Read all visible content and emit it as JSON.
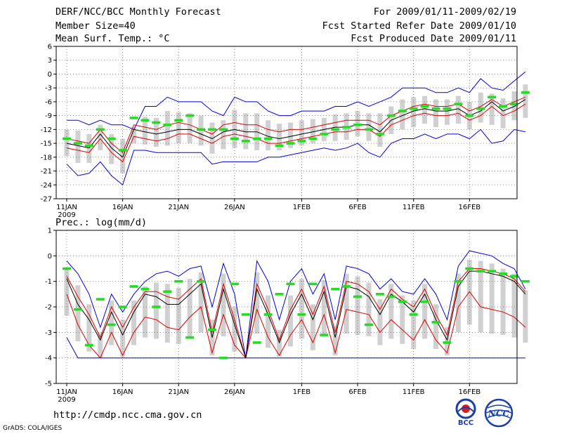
{
  "header": {
    "title": "DERF/NCC/BCC Monthly Forecast",
    "member_size": "Member Size=40",
    "variable1": "Mean Surf. Temp.: °C",
    "period": "For 2009/01/11-2009/02/19",
    "started": "Fcst Started Refer Date 2009/01/10",
    "produced": "Fcst Produced Date 2009/01/11"
  },
  "footer": {
    "url": "http://cmdp.ncc.cma.gov.cn",
    "credit": "GrADS: COLA/IGES",
    "logo_bcc": "BCC",
    "logo_ncc": "NCC"
  },
  "colors": {
    "blue": "#0000dd",
    "red": "#dd0000",
    "black": "#000000",
    "green": "#22dd22",
    "box": "#d0d0d0"
  },
  "chart_data": [
    {
      "type": "line",
      "title": "Mean Surf. Temp.: °C",
      "year_label": "2009",
      "x_tick_labels": [
        "11JAN",
        "16JAN",
        "21JAN",
        "26JAN",
        "1FEB",
        "6FEB",
        "11FEB",
        "16FEB"
      ],
      "x_tick_days": [
        0,
        5,
        10,
        15,
        21,
        26,
        31,
        36
      ],
      "ylim": [
        -27,
        6
      ],
      "y_ticks": [
        6,
        3,
        0,
        -3,
        -6,
        -9,
        -12,
        -15,
        -18,
        -21,
        -24,
        -27
      ],
      "series": [
        {
          "name": "upper envelope",
          "color": "blue",
          "values": [
            -10,
            -10,
            -11,
            -10,
            -11,
            -11,
            -12,
            -7,
            -7,
            -5,
            -6,
            -6,
            -6,
            -8,
            -9,
            -5,
            -6,
            -6,
            -8,
            -9,
            -9,
            -8,
            -8,
            -8,
            -7,
            -7,
            -6,
            -7,
            -6,
            -5,
            -3,
            -3,
            -3,
            -4,
            -4,
            -3,
            -4,
            -1,
            -3,
            -3.5,
            -1.5,
            0.5
          ]
        },
        {
          "name": "upper quartile",
          "color": "red",
          "values": [
            -14,
            -14.5,
            -15,
            -12,
            -15,
            -17,
            -11,
            -11.5,
            -12,
            -11,
            -10.5,
            -11,
            -12,
            -13,
            -11,
            -10.5,
            -11,
            -11,
            -12,
            -12.5,
            -12,
            -12,
            -11.5,
            -11,
            -10.5,
            -10,
            -10,
            -10,
            -11,
            -9,
            -8,
            -7,
            -6.5,
            -7,
            -7,
            -6.5,
            -8,
            -7,
            -5.5,
            -7,
            -6,
            -5
          ]
        },
        {
          "name": "ensemble mean",
          "color": "black",
          "values": [
            -15,
            -15.5,
            -16,
            -13,
            -16,
            -18,
            -12,
            -12.5,
            -13,
            -12.5,
            -12,
            -12,
            -13,
            -14,
            -12.5,
            -12,
            -12.5,
            -12.5,
            -13.5,
            -14,
            -13.5,
            -13,
            -12.5,
            -12,
            -11.5,
            -11.5,
            -11,
            -11,
            -12.5,
            -10,
            -9,
            -8,
            -7.5,
            -8,
            -8,
            -7.5,
            -9,
            -8,
            -6,
            -8,
            -7,
            -5.5
          ]
        },
        {
          "name": "lower quartile",
          "color": "red",
          "values": [
            -16,
            -16.5,
            -17,
            -14,
            -17,
            -19,
            -13.5,
            -14,
            -14.5,
            -14,
            -13,
            -13,
            -14,
            -15,
            -13.5,
            -13,
            -13.5,
            -14,
            -15,
            -15,
            -14.5,
            -14,
            -13.5,
            -13,
            -12.5,
            -12.5,
            -12,
            -12,
            -13.5,
            -11,
            -10,
            -9,
            -8.5,
            -9,
            -9,
            -8.5,
            -10,
            -9,
            -7,
            -9,
            -8,
            -6.5
          ]
        },
        {
          "name": "lower envelope",
          "color": "blue",
          "values": [
            -19.5,
            -22,
            -21.5,
            -19,
            -22,
            -24,
            -16.5,
            -16.5,
            -17,
            -17,
            -17,
            -17,
            -17,
            -19.5,
            -19,
            -19,
            -19,
            -19,
            -18,
            -18,
            -17.5,
            -17,
            -16.5,
            -16,
            -16.5,
            -16,
            -15,
            -17,
            -18,
            -15,
            -14,
            -14,
            -13,
            -14,
            -13,
            -13,
            -14,
            -12,
            -15,
            -14.5,
            -12,
            -12.5
          ]
        },
        {
          "name": "observed",
          "color": "green",
          "values": [
            -14,
            -15,
            -15.5,
            -12,
            -14,
            -16.5,
            -9.5,
            -10,
            -10.5,
            -11,
            -10,
            -9,
            -12,
            -12,
            -12,
            -14,
            -14.5,
            -14,
            -14,
            -15.5,
            -15,
            -14.5,
            -14,
            -13,
            -12,
            -11.5,
            -11,
            -12,
            -13,
            -9,
            -8,
            -7.5,
            -7,
            -7.5,
            -7.5,
            -6.5,
            -9,
            -7.5,
            -5,
            -7,
            -6.5,
            -4
          ]
        }
      ]
    },
    {
      "type": "line",
      "title": "Prec.: log(mm/d)",
      "year_label": "2009",
      "x_tick_labels": [
        "11JAN",
        "16JAN",
        "21JAN",
        "26JAN",
        "1FEB",
        "6FEB",
        "11FEB",
        "16FEB"
      ],
      "x_tick_days": [
        0,
        5,
        10,
        15,
        21,
        26,
        31,
        36
      ],
      "ylim": [
        -5,
        1
      ],
      "y_ticks": [
        1,
        0,
        -1,
        -2,
        -3,
        -4,
        -5
      ],
      "series": [
        {
          "name": "upper envelope",
          "color": "blue",
          "values": [
            -0.2,
            -0.7,
            -1.5,
            -2.8,
            -1.5,
            -2.2,
            -1.5,
            -1.0,
            -0.7,
            -0.6,
            -0.8,
            -0.5,
            -0.4,
            -2.0,
            -0.3,
            -1.5,
            -4.0,
            -0.2,
            -1.0,
            -2.5,
            -1.0,
            -0.5,
            -1.5,
            -0.7,
            -2.5,
            -0.4,
            -0.5,
            -0.7,
            -1.3,
            -0.9,
            -1.4,
            -1.5,
            -0.9,
            -1.5,
            -2.5,
            -0.4,
            0.2,
            0.1,
            0.0,
            -0.3,
            -0.5,
            -1.3
          ]
        },
        {
          "name": "upper quartile",
          "color": "red",
          "values": [
            -0.8,
            -1.6,
            -2.3,
            -3.2,
            -2.0,
            -2.8,
            -2.0,
            -1.4,
            -1.4,
            -1.6,
            -1.7,
            -1.3,
            -0.9,
            -3.0,
            -1.1,
            -2.5,
            -4.0,
            -1.1,
            -2.1,
            -3.3,
            -2.1,
            -1.3,
            -2.3,
            -1.2,
            -3.0,
            -1.0,
            -1.1,
            -1.4,
            -2.1,
            -1.3,
            -1.7,
            -2.0,
            -1.3,
            -2.3,
            -3.1,
            -1.0,
            -0.5,
            -0.5,
            -0.6,
            -0.7,
            -0.9,
            -1.4
          ]
        },
        {
          "name": "ensemble mean",
          "color": "black",
          "values": [
            -0.9,
            -1.9,
            -2.5,
            -3.3,
            -2.2,
            -3.1,
            -2.2,
            -1.5,
            -1.6,
            -1.9,
            -1.9,
            -1.5,
            -1.1,
            -3.2,
            -1.3,
            -2.7,
            -4.0,
            -1.3,
            -2.3,
            -3.4,
            -2.3,
            -1.5,
            -2.5,
            -1.4,
            -3.2,
            -1.2,
            -1.3,
            -1.6,
            -2.3,
            -1.5,
            -1.8,
            -2.2,
            -1.5,
            -2.5,
            -3.3,
            -1.2,
            -0.6,
            -0.6,
            -0.7,
            -0.8,
            -1.0,
            -1.5
          ]
        },
        {
          "name": "lower quartile",
          "color": "red",
          "values": [
            -1.5,
            -2.7,
            -3.5,
            -4.0,
            -3.0,
            -3.9,
            -3.0,
            -2.4,
            -2.5,
            -2.8,
            -2.9,
            -2.4,
            -2.0,
            -3.8,
            -2.3,
            -3.5,
            -4.0,
            -2.1,
            -3.2,
            -3.9,
            -3.1,
            -2.5,
            -3.4,
            -2.3,
            -3.8,
            -2.1,
            -2.2,
            -2.3,
            -3.0,
            -2.5,
            -2.9,
            -3.3,
            -2.5,
            -3.3,
            -3.8,
            -2.0,
            -1.4,
            -2.0,
            -2.1,
            -2.2,
            -2.4,
            -2.8
          ]
        },
        {
          "name": "lower envelope",
          "color": "blue",
          "values": [
            -3.2,
            -4.0,
            -4.0,
            -4.0,
            -4.0,
            -4.0,
            -4.0,
            -4.0,
            -4.0,
            -4.0,
            -4.0,
            -4.0,
            -4.0,
            -4.0,
            -4.0,
            -4.0,
            -4.0,
            -4.0,
            -4.0,
            -4.0,
            -4.0,
            -4.0,
            -4.0,
            -4.0,
            -4.0,
            -4.0,
            -4.0,
            -4.0,
            -4.0,
            -4.0,
            -4.0,
            -4.0,
            -4.0,
            -4.0,
            -4.0,
            -4.0,
            -4.0,
            -4.0,
            -4.0,
            -4.0,
            -4.0,
            -4.0
          ]
        },
        {
          "name": "observed",
          "color": "green",
          "values": [
            -0.5,
            -2.1,
            -3.5,
            -1.7,
            -2.7,
            -2.0,
            -1.2,
            -1.3,
            -2.0,
            -1.4,
            -1.0,
            -3.2,
            -1.0,
            -2.9,
            -4.0,
            -1.1,
            -2.3,
            -3.4,
            -2.3,
            -1.5,
            -1.1,
            -2.3,
            -1.1,
            -3.1,
            -1.3,
            -1.2,
            -1.6,
            -2.7,
            -1.5,
            -1.6,
            -1.8,
            -2.3,
            -1.8,
            -2.6,
            -3.4,
            -1.0,
            -0.5,
            -0.6,
            -0.6,
            -0.7,
            -0.8,
            -1.0
          ]
        }
      ]
    }
  ]
}
